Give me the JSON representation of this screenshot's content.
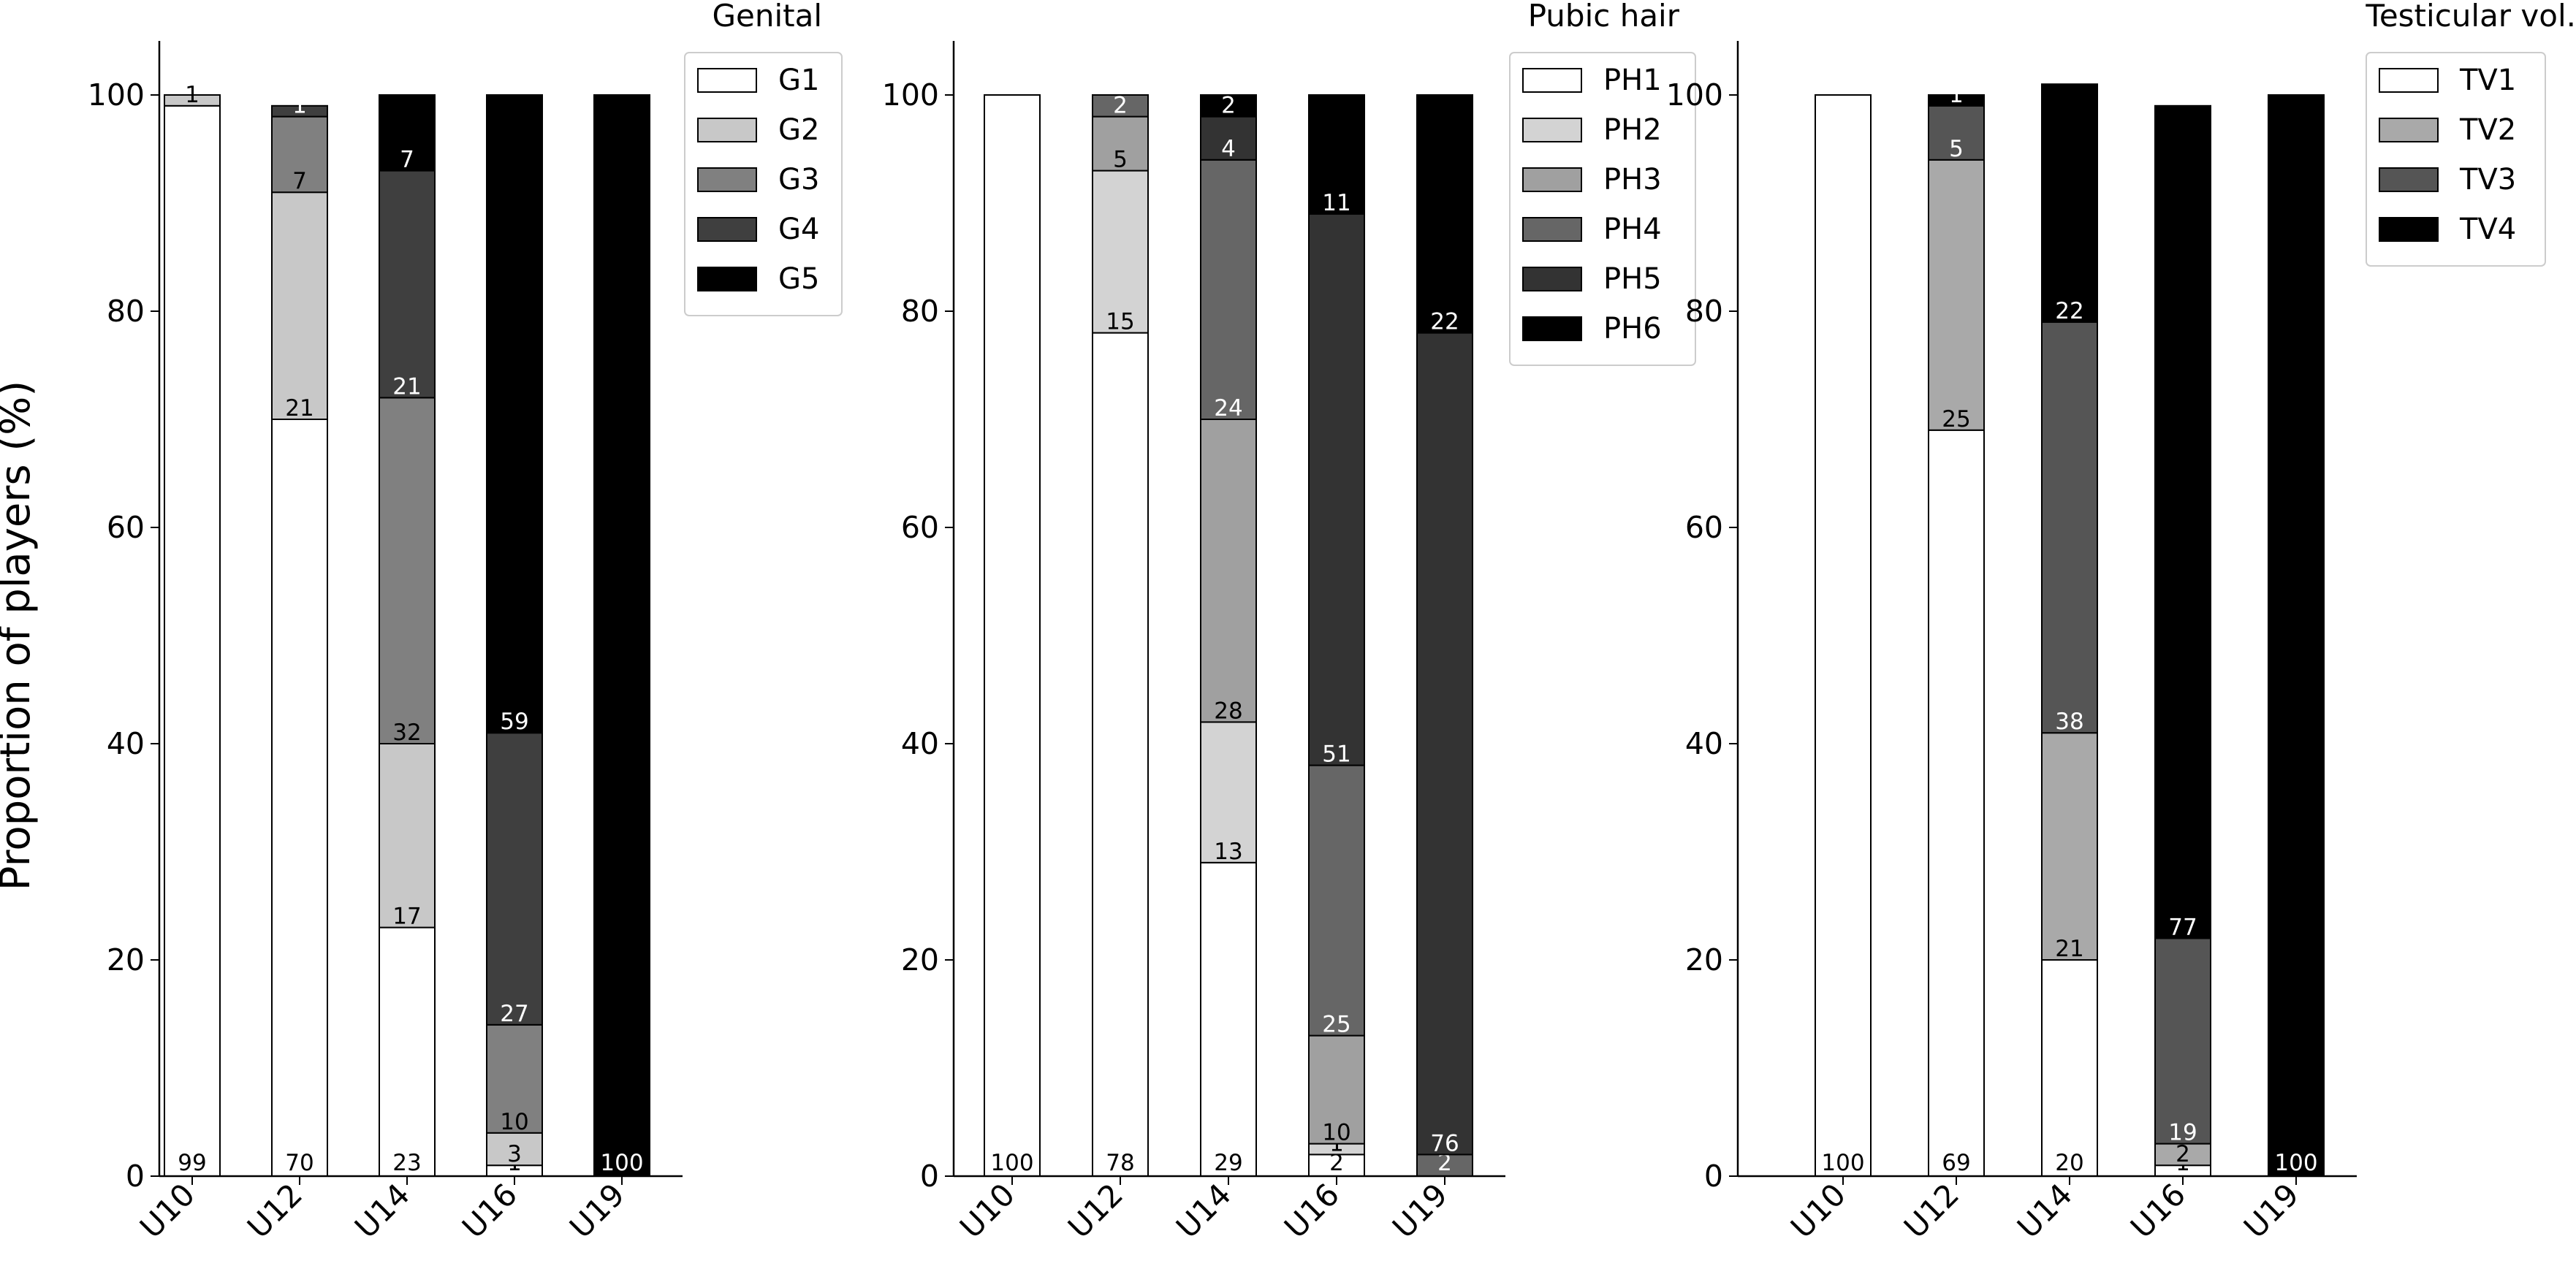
{
  "y_axis_label": "Proportion of players (%)",
  "chart_data": [
    {
      "type": "bar",
      "stacked": true,
      "title": "Genital",
      "categories": [
        "U10",
        "U12",
        "U14",
        "U16",
        "U19"
      ],
      "ylabel": "Proportion of players (%)",
      "ylim": [
        0,
        105
      ],
      "yticks": [
        "0",
        "20",
        "40",
        "60",
        "80",
        "100"
      ],
      "legend_position": "top-right",
      "series": [
        {
          "name": "G1",
          "color": "#ffffff",
          "values": [
            99,
            70,
            23,
            1,
            0
          ],
          "labels": [
            "99",
            "70",
            "23",
            "1",
            ""
          ]
        },
        {
          "name": "G2",
          "color": "#c8c8c8",
          "values": [
            1,
            21,
            17,
            3,
            0
          ],
          "labels": [
            "1",
            "21",
            "17",
            "3",
            ""
          ]
        },
        {
          "name": "G3",
          "color": "#808080",
          "values": [
            0,
            7,
            32,
            10,
            0
          ],
          "labels": [
            "",
            "7",
            "32",
            "10",
            ""
          ]
        },
        {
          "name": "G4",
          "color": "#3f3f3f",
          "values": [
            0,
            1,
            21,
            27,
            0
          ],
          "labels": [
            "",
            "1",
            "21",
            "27",
            ""
          ]
        },
        {
          "name": "G5",
          "color": "#000000",
          "values": [
            0,
            0,
            7,
            59,
            100
          ],
          "labels": [
            "",
            "",
            "7",
            "59",
            "100"
          ]
        }
      ]
    },
    {
      "type": "bar",
      "stacked": true,
      "title": "Pubic hair",
      "categories": [
        "U10",
        "U12",
        "U14",
        "U16",
        "U19"
      ],
      "ylim": [
        0,
        105
      ],
      "yticks": [
        "0",
        "20",
        "40",
        "60",
        "80",
        "100"
      ],
      "legend_position": "top-right",
      "series": [
        {
          "name": "PH1",
          "color": "#ffffff",
          "values": [
            100,
            78,
            29,
            2,
            0
          ],
          "labels": [
            "100",
            "78",
            "29",
            "2",
            ""
          ]
        },
        {
          "name": "PH2",
          "color": "#d3d3d3",
          "values": [
            0,
            15,
            13,
            1,
            0
          ],
          "labels": [
            "",
            "15",
            "13",
            "1",
            ""
          ]
        },
        {
          "name": "PH3",
          "color": "#a0a0a0",
          "values": [
            0,
            5,
            28,
            10,
            0
          ],
          "labels": [
            "",
            "5",
            "28",
            "10",
            ""
          ]
        },
        {
          "name": "PH4",
          "color": "#666666",
          "values": [
            0,
            2,
            24,
            25,
            2
          ],
          "labels": [
            "",
            "2",
            "24",
            "25",
            "2"
          ]
        },
        {
          "name": "PH5",
          "color": "#333333",
          "values": [
            0,
            0,
            4,
            51,
            76
          ],
          "labels": [
            "",
            "",
            "4",
            "51",
            "76"
          ]
        },
        {
          "name": "PH6",
          "color": "#000000",
          "values": [
            0,
            0,
            2,
            11,
            22
          ],
          "labels": [
            "",
            "",
            "2",
            "11",
            "22"
          ]
        }
      ]
    },
    {
      "type": "bar",
      "stacked": true,
      "title": "Testicular vol.",
      "categories": [
        "U10",
        "U12",
        "U14",
        "U16",
        "U19"
      ],
      "ylim": [
        0,
        105
      ],
      "yticks": [
        "0",
        "20",
        "40",
        "60",
        "80",
        "100"
      ],
      "legend_position": "top-right",
      "series": [
        {
          "name": "TV1",
          "color": "#ffffff",
          "values": [
            100,
            69,
            20,
            1,
            0
          ],
          "labels": [
            "100",
            "69",
            "20",
            "1",
            ""
          ]
        },
        {
          "name": "TV2",
          "color": "#a9a9a9",
          "values": [
            0,
            25,
            21,
            2,
            0
          ],
          "labels": [
            "",
            "25",
            "21",
            "2",
            ""
          ]
        },
        {
          "name": "TV3",
          "color": "#555555",
          "values": [
            0,
            5,
            38,
            19,
            0
          ],
          "labels": [
            "",
            "5",
            "38",
            "19",
            ""
          ]
        },
        {
          "name": "TV4",
          "color": "#000000",
          "values": [
            0,
            1,
            22,
            77,
            100
          ],
          "labels": [
            "",
            "1",
            "22",
            "77",
            "100"
          ]
        }
      ]
    }
  ]
}
